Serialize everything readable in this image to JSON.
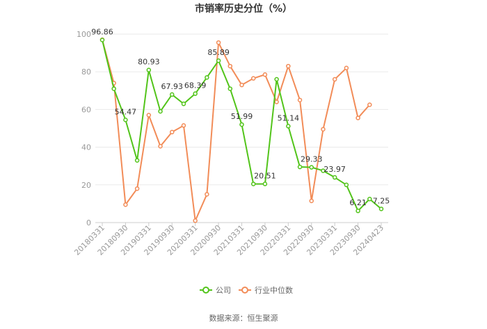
{
  "chart_data": {
    "type": "line",
    "title": "市销率历史分位（%）",
    "source": "数据来源：恒生聚源",
    "ylim": [
      0,
      100
    ],
    "yticks": [
      0,
      20,
      40,
      60,
      80,
      100
    ],
    "xtick_labels": [
      "20180331",
      "20180930",
      "20190331",
      "20190930",
      "20200331",
      "20200930",
      "20210331",
      "20210930",
      "20220331",
      "20220930",
      "20230331",
      "20230930",
      "20240423"
    ],
    "x": [
      "20180331",
      "20180630",
      "20180930",
      "20181231",
      "20190331",
      "20190630",
      "20190930",
      "20191231",
      "20200331",
      "20200630",
      "20200930",
      "20201231",
      "20210331",
      "20210630",
      "20210930",
      "20211231",
      "20220331",
      "20220630",
      "20220930",
      "20221231",
      "20230331",
      "20230630",
      "20230930",
      "20231231",
      "20240423"
    ],
    "series": [
      {
        "name": "公司",
        "color": "#52c41a",
        "values": [
          96.86,
          71,
          54.47,
          33,
          80.93,
          59,
          67.93,
          63,
          68.39,
          77,
          85.89,
          71,
          51.99,
          20.5,
          20.51,
          76,
          51.14,
          29.5,
          29.33,
          27.5,
          23.97,
          20,
          6.21,
          12.5,
          7.25
        ],
        "labels": {
          "0": "96.86",
          "2": "54.47",
          "4": "80.93",
          "6": "67.93",
          "8": "68.39",
          "10": "85.89",
          "12": "51.99",
          "14": "20.51",
          "16": "51.14",
          "18": "29.33",
          "20": "23.97",
          "22": "6.21",
          "24": "7.25"
        }
      },
      {
        "name": "行业中位数",
        "color": "#f28c58",
        "values": [
          97,
          74,
          9.5,
          18,
          57,
          40.5,
          48,
          51.5,
          1,
          15,
          95.5,
          83,
          73,
          76.5,
          78.5,
          64,
          83,
          65,
          11.5,
          49.5,
          76,
          82,
          55.5,
          62.5,
          null
        ]
      }
    ],
    "legend_position": "bottom"
  }
}
